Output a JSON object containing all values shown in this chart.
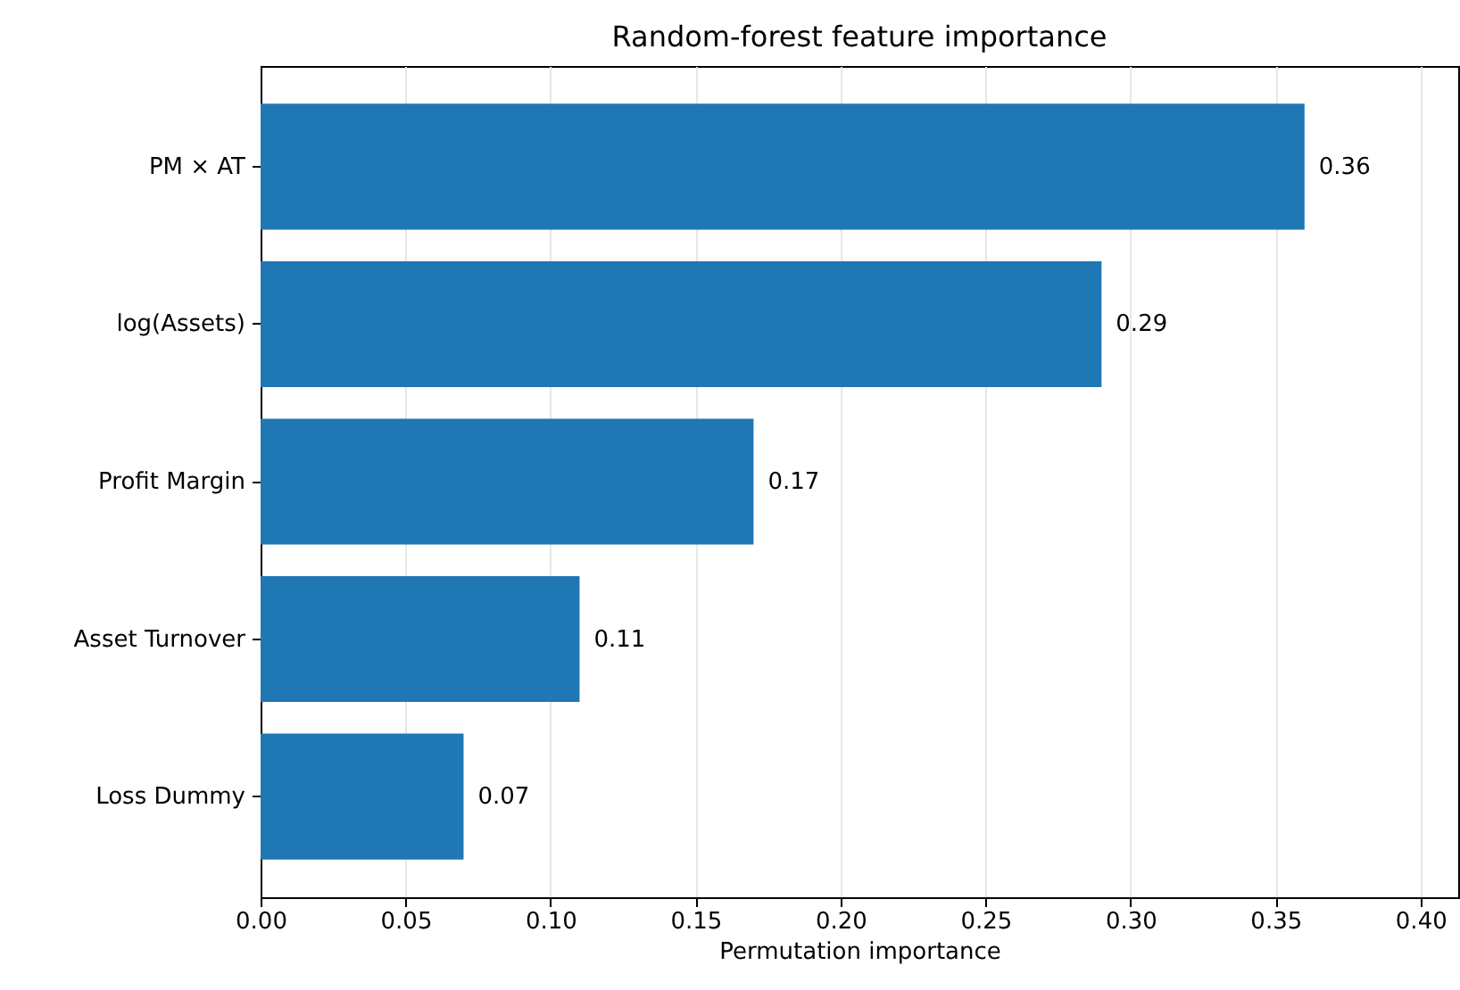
{
  "chart_data": {
    "type": "bar",
    "orientation": "horizontal",
    "title": "Random-forest feature importance",
    "xlabel": "Permutation importance",
    "categories": [
      "PM × AT",
      "log(Assets)",
      "Profit Margin",
      "Asset Turnover",
      "Loss Dummy"
    ],
    "values": [
      0.36,
      0.29,
      0.17,
      0.11,
      0.07
    ],
    "color": "#1f77b4",
    "data_labels": true,
    "xlim": [
      0,
      0.413
    ],
    "xticks": [
      {
        "value": 0,
        "label": "0.00"
      },
      {
        "value": 0.05,
        "label": "0.05"
      },
      {
        "value": 0.1,
        "label": "0.10"
      },
      {
        "value": 0.15,
        "label": "0.15"
      },
      {
        "value": 0.2,
        "label": "0.20"
      },
      {
        "value": 0.25,
        "label": "0.25"
      },
      {
        "value": 0.3,
        "label": "0.30"
      },
      {
        "value": 0.35,
        "label": "0.35"
      },
      {
        "value": 0.4,
        "label": "0.40"
      }
    ],
    "grid": "x"
  }
}
